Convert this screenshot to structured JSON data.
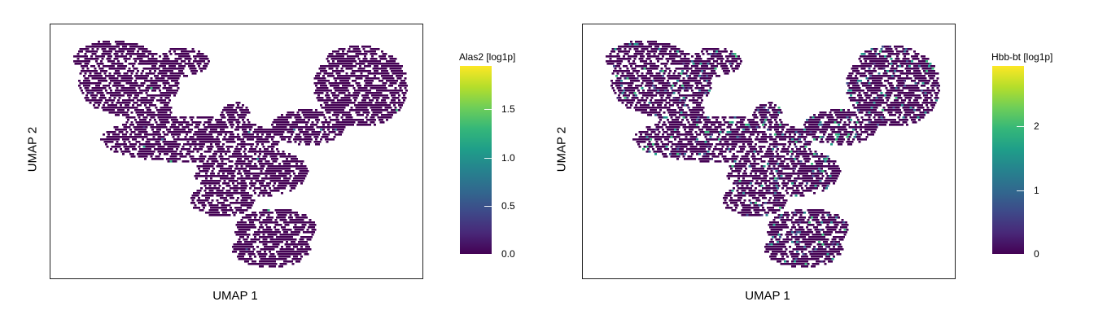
{
  "chart_data": [
    {
      "type": "scatter",
      "subtype": "hexbin-embedding",
      "xlabel": "UMAP 1",
      "ylabel": "UMAP 2",
      "colorbar": {
        "title": "Alas2 [log1p]",
        "colormap": "viridis",
        "range": [
          0,
          1.95
        ],
        "ticks": [
          0.0,
          0.5,
          1.0,
          1.5
        ],
        "tick_labels": [
          "0.0",
          "0.5",
          "1.0",
          "1.5"
        ]
      },
      "highlight_fraction": 0.004,
      "grid": false,
      "axis_ticks": false
    },
    {
      "type": "scatter",
      "subtype": "hexbin-embedding",
      "xlabel": "UMAP 1",
      "ylabel": "UMAP 2",
      "colorbar": {
        "title": "Hbb-bt [log1p]",
        "colormap": "viridis",
        "range": [
          0,
          2.95
        ],
        "ticks": [
          0,
          1,
          2
        ],
        "tick_labels": [
          "0",
          "1",
          "2"
        ]
      },
      "highlight_fraction": 0.09,
      "grid": false,
      "axis_ticks": false
    }
  ],
  "colors": {
    "background": "#ffffff",
    "frame": "#222222",
    "low": "#440154",
    "viridis": [
      "#440154",
      "#482878",
      "#3e4989",
      "#31688e",
      "#26828e",
      "#1f9e89",
      "#35b779",
      "#6ece58",
      "#b5de2b",
      "#fde725"
    ]
  }
}
